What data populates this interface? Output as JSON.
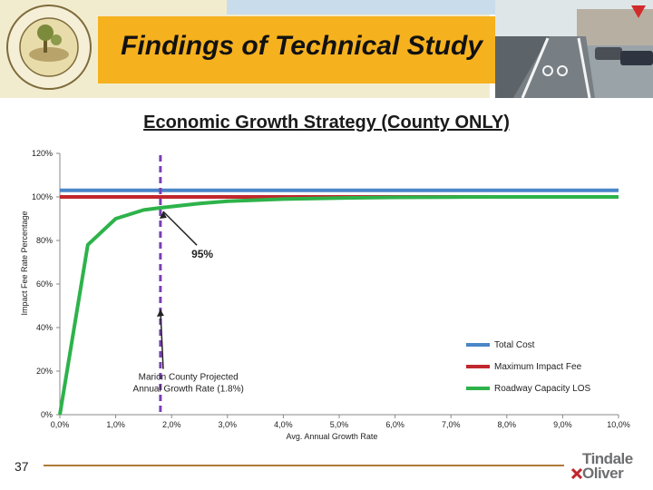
{
  "slide": {
    "title": "Findings of Technical Study",
    "subtitle": "Economic Growth Strategy (County ONLY)",
    "page_number": "37",
    "brand": {
      "line1": "Tindale",
      "line2": "Oliver"
    },
    "seal_text": "MARION COUNTY FLORIDA",
    "colors": {
      "title_band": "#f6b11f",
      "accent_line": "#b07a3b"
    }
  },
  "chart_data": {
    "type": "line",
    "title": "",
    "xlabel": "Avg. Annual Growth Rate",
    "ylabel": "Impact Fee Rate Percentage",
    "xlim": [
      0,
      10
    ],
    "ylim": [
      0,
      120
    ],
    "x_ticks": [
      "0,0%",
      "1,0%",
      "2,0%",
      "3,0%",
      "4,0%",
      "5,0%",
      "6,0%",
      "7,0%",
      "8,0%",
      "9,0%",
      "10,0%"
    ],
    "y_ticks": [
      "0%",
      "20%",
      "40%",
      "60%",
      "80%",
      "100%",
      "120%"
    ],
    "grid": false,
    "legend_position": "bottom-right",
    "series": [
      {
        "name": "Total Cost",
        "color": "#4a86c8",
        "x": [
          0,
          10
        ],
        "y": [
          103,
          103
        ]
      },
      {
        "name": "Maximum Impact Fee",
        "color": "#c0282d",
        "x": [
          0,
          10
        ],
        "y": [
          100,
          100
        ]
      },
      {
        "name": "Roadway Capacity LOS",
        "color": "#2db34a",
        "x": [
          0,
          0.5,
          1.0,
          1.5,
          1.8,
          2.5,
          3.0,
          4.0,
          5.0,
          6.0,
          7.0,
          8.0,
          9.0,
          10.0
        ],
        "y": [
          0,
          78,
          90,
          94,
          95,
          97,
          98,
          99,
          99.5,
          99.8,
          99.9,
          100,
          100,
          100
        ]
      }
    ],
    "reference_line": {
      "x": 1.8,
      "color": "#7a3fb5"
    },
    "annotations": [
      {
        "text": "95%",
        "x": 2.55,
        "y": 72,
        "arrow_to": [
          1.8,
          95
        ]
      },
      {
        "text": "Marion County Projected",
        "text2": "Annual Growth Rate (1.8%)",
        "x": 2.3,
        "y": 16,
        "arrow_to": [
          1.8,
          50
        ]
      }
    ]
  }
}
